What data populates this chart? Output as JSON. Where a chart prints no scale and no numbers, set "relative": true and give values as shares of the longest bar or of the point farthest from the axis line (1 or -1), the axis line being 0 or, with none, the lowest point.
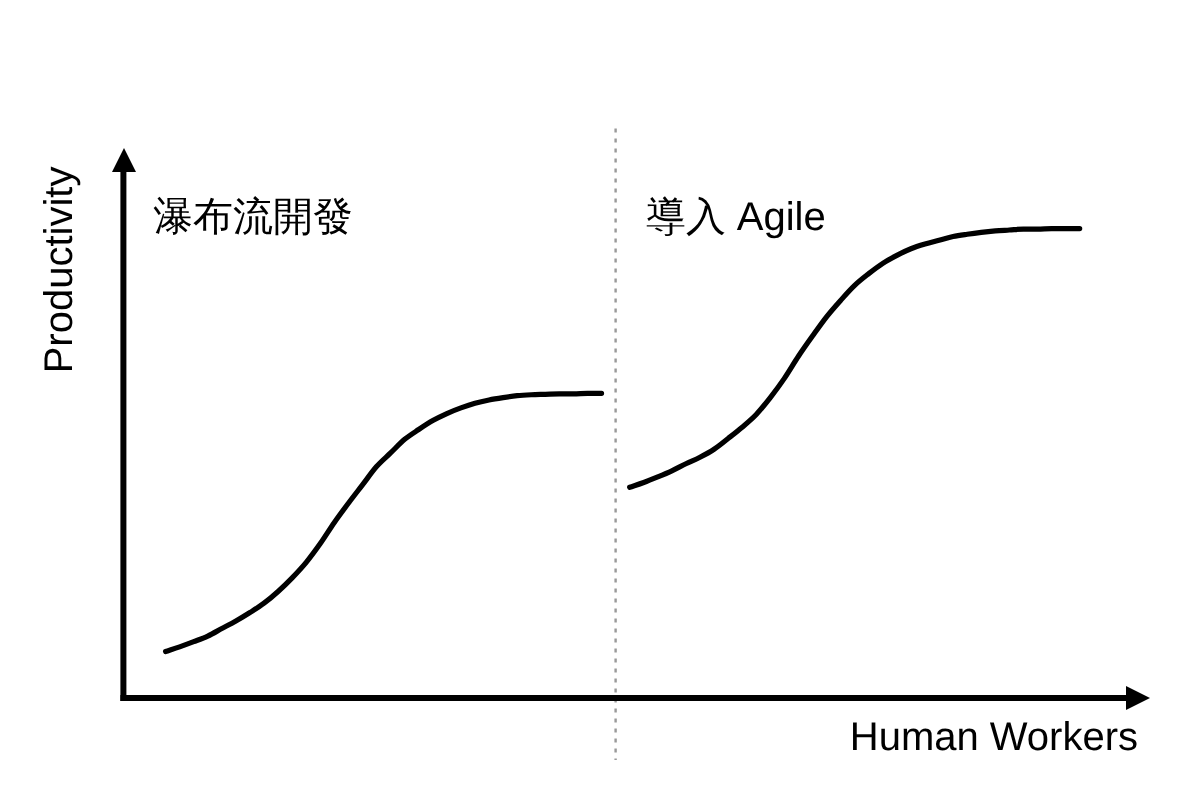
{
  "chart_data": {
    "type": "line",
    "relative": true,
    "xlabel": "Human Workers",
    "ylabel": "Productivity",
    "annotations": [
      "瀑布流開發",
      "導入 Agile"
    ],
    "categories": [
      null,
      null,
      null,
      null,
      null,
      null,
      null,
      null,
      null,
      null,
      null,
      null,
      null,
      null,
      null,
      null,
      null,
      null,
      null,
      null,
      null,
      null,
      null,
      null,
      null,
      null,
      null,
      null,
      null,
      null,
      null,
      null,
      null,
      null,
      null,
      null,
      null,
      null,
      null,
      null,
      null,
      null,
      null,
      null,
      null,
      null,
      null,
      null,
      null,
      null,
      null,
      null,
      null,
      null,
      null,
      null,
      null,
      null,
      null,
      null,
      null,
      null,
      null,
      null,
      null,
      null,
      null,
      null,
      null,
      null,
      null,
      null,
      null,
      null
    ],
    "series": [
      {
        "color": "#000000",
        "values": [
          null,
          null,
          null,
          0.099,
          0.109,
          0.12,
          0.132,
          0.148,
          0.164,
          0.182,
          0.202,
          0.227,
          0.256,
          0.289,
          0.329,
          0.374,
          0.415,
          0.454,
          0.493,
          0.522,
          0.551,
          0.572,
          0.591,
          0.606,
          0.618,
          0.628,
          0.635,
          0.64,
          0.644,
          0.646,
          0.647,
          0.648,
          0.648,
          0.649,
          0.649,
          null,
          null,
          null,
          null,
          null,
          null,
          null,
          null,
          null,
          null,
          null,
          null,
          null,
          null,
          null,
          null,
          null,
          null,
          null,
          null,
          null,
          null,
          null,
          null,
          null,
          null,
          null,
          null,
          null,
          null,
          null,
          null,
          null,
          null,
          null,
          null,
          null,
          null,
          null
        ]
      },
      {
        "color": "#000000",
        "values": [
          null,
          null,
          null,
          null,
          null,
          null,
          null,
          null,
          null,
          null,
          null,
          null,
          null,
          null,
          null,
          null,
          null,
          null,
          null,
          null,
          null,
          null,
          null,
          null,
          null,
          null,
          null,
          null,
          null,
          null,
          null,
          null,
          null,
          null,
          null,
          null,
          0.449,
          0.459,
          0.471,
          0.484,
          0.499,
          0.513,
          0.53,
          0.553,
          0.577,
          0.604,
          0.64,
          0.681,
          0.728,
          0.771,
          0.812,
          0.847,
          0.879,
          0.904,
          0.926,
          0.943,
          0.957,
          0.967,
          0.975,
          0.983,
          0.988,
          0.992,
          0.995,
          0.997,
          0.999,
          0.999,
          1.0,
          1,
          1,
          null,
          null,
          null,
          null,
          null
        ]
      }
    ],
    "marker": "none",
    "line_style": "solid"
  }
}
